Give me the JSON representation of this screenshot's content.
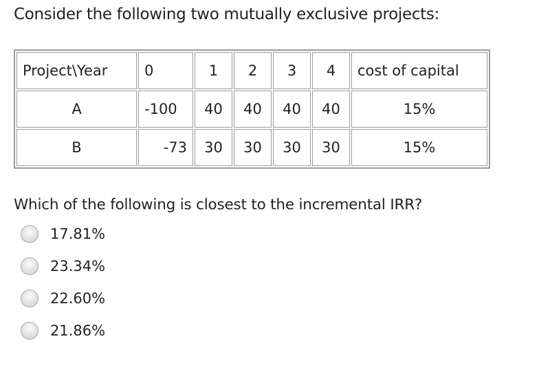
{
  "intro": "Consider the following two mutually exclusive projects:",
  "table": {
    "header": [
      "Project\\Year",
      "0",
      "1",
      "2",
      "3",
      "4",
      "cost of capital"
    ],
    "rows": [
      [
        "A",
        "-100",
        "40",
        "40",
        "40",
        "40",
        "15%"
      ],
      [
        "B",
        "-73",
        "30",
        "30",
        "30",
        "30",
        "15%"
      ]
    ]
  },
  "question": "Which of the following is closest to the incremental IRR?",
  "options": [
    "17.81%",
    "23.34%",
    "22.60%",
    "21.86%"
  ]
}
